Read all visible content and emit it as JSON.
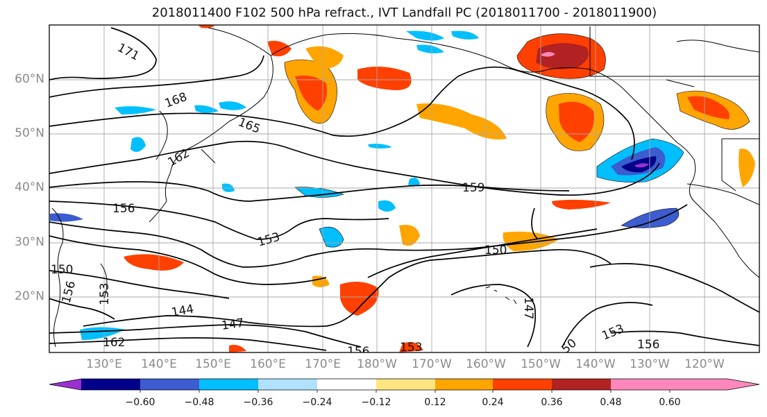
{
  "title": "2018011400 F102 500 hPa refract., IVT Landfall PC (2018011700 - 2018011900)",
  "latitude_labels": [
    "60°N",
    "50°N",
    "40°N",
    "30°N",
    "20°N"
  ],
  "longitude_labels": [
    "130°E",
    "140°E",
    "150°E",
    "160°E",
    "170°E",
    "180°W",
    "170°W",
    "160°W",
    "150°W",
    "140°W",
    "130°W",
    "120°W"
  ],
  "contour_labels": [
    {
      "text": "171"
    },
    {
      "text": "168"
    },
    {
      "text": "165"
    },
    {
      "text": "162"
    },
    {
      "text": "159"
    },
    {
      "text": "156"
    },
    {
      "text": "153"
    },
    {
      "text": "150"
    },
    {
      "text": "150"
    },
    {
      "text": "156"
    },
    {
      "text": "153"
    },
    {
      "text": "144"
    },
    {
      "text": "147"
    },
    {
      "text": "162"
    },
    {
      "text": "156"
    },
    {
      "text": "153"
    },
    {
      "text": "147"
    },
    {
      "text": "50"
    },
    {
      "text": "153"
    },
    {
      "text": "156"
    }
  ],
  "colorbar": {
    "ticks": [
      "−0.60",
      "−0.48",
      "−0.36",
      "−0.24",
      "−0.12",
      "0.12",
      "0.24",
      "0.36",
      "0.48",
      "0.60"
    ],
    "colors": [
      "#9b30d0",
      "#00008b",
      "#3c5ccf",
      "#00bfff",
      "#b0e2ff",
      "#ffffff",
      "#ffe680",
      "#ffa500",
      "#ff4000",
      "#b22222",
      "#ff88bb"
    ]
  }
}
